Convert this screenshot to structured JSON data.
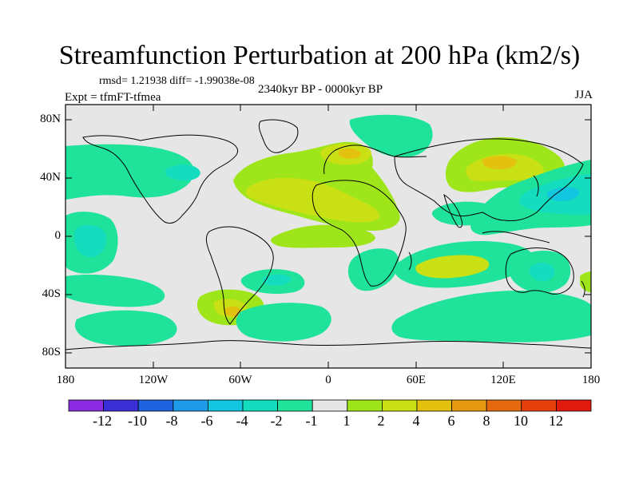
{
  "title": "Streamfunction Perturbation at 200 hPa (km2/s)",
  "stats": "rmsd= 1.21938 diff= -1.99038e-08",
  "experiment": "Expt = tfmFT-tfmea",
  "period": "2340kyr BP - 0000kyr BP",
  "season": "JJA",
  "axes": {
    "y_ticks": [
      "80N",
      "40N",
      "0",
      "40S",
      "80S"
    ],
    "x_ticks": [
      "180",
      "120W",
      "60W",
      "0",
      "60E",
      "120E",
      "180"
    ]
  },
  "colorbar": {
    "colors": [
      "#8a2be2",
      "#3a2fd6",
      "#1f63e0",
      "#1f9ae6",
      "#12c6e0",
      "#14dcbe",
      "#1fe39a",
      "#e6e6e6",
      "#9ee619",
      "#c8e014",
      "#e3c20f",
      "#e6990f",
      "#e6690f",
      "#e6400f",
      "#e11a10"
    ],
    "labels": [
      "-12",
      "-10",
      "-8",
      "-6",
      "-4",
      "-2",
      "-1",
      "1",
      "2",
      "4",
      "6",
      "8",
      "10",
      "12"
    ]
  },
  "field_colors": {
    "green": "#1fe39a",
    "teal": "#14dcbe",
    "cyan": "#12c6e0",
    "lime": "#9ee619",
    "yellow": "#c8e014",
    "gold": "#e3c20f",
    "orange": "#e6990f",
    "neutral": "#e6e6e6"
  }
}
